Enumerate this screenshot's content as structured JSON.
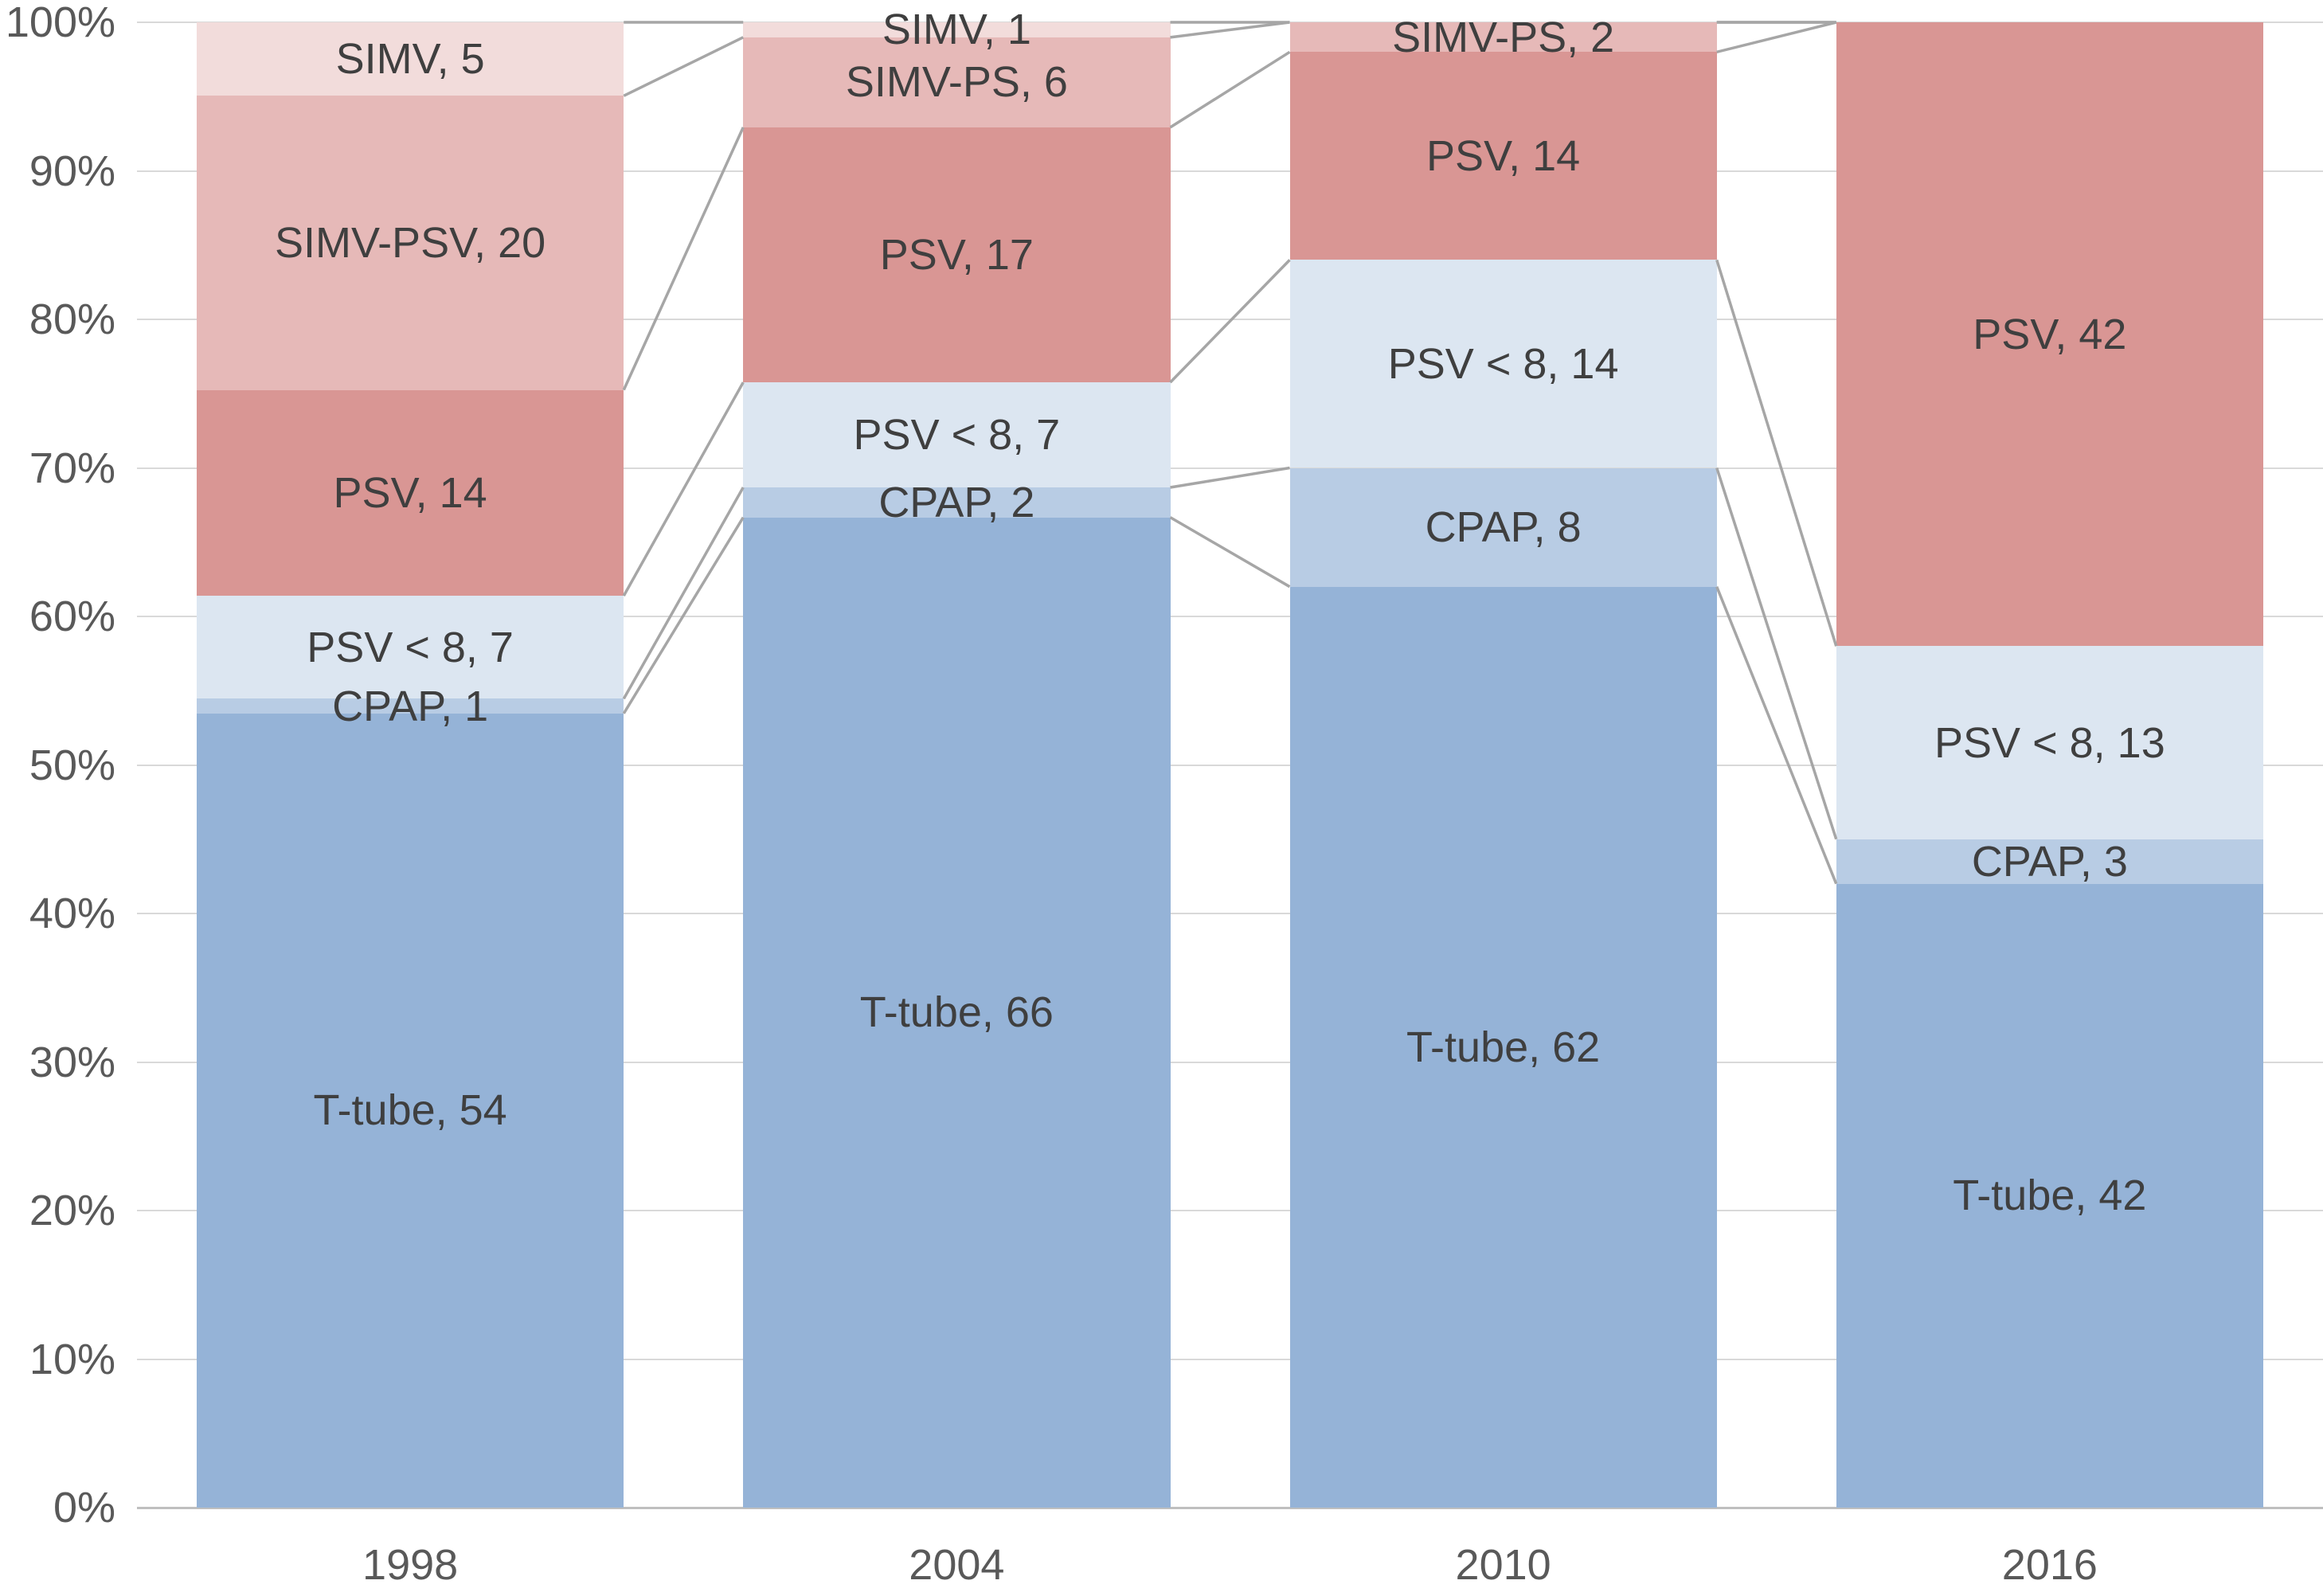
{
  "chart_data": {
    "type": "bar",
    "subtype": "percent-stacked-column",
    "title": "",
    "categories": [
      "1998",
      "2004",
      "2010",
      "2016"
    ],
    "series": [
      {
        "name": "T-tube",
        "color": "#95B3D7",
        "values": [
          54,
          66,
          62,
          42
        ],
        "labels": [
          "T-tube, 54",
          "T-tube, 66",
          "T-tube, 62",
          "T-tube, 42"
        ]
      },
      {
        "name": "CPAP",
        "color": "#B8CCE4",
        "values": [
          1,
          2,
          8,
          3
        ],
        "labels": [
          "CPAP, 1",
          "CPAP, 2",
          "CPAP, 8",
          "CPAP, 3"
        ]
      },
      {
        "name": "PSV < 8",
        "color": "#DCE6F1",
        "values": [
          7,
          7,
          14,
          13
        ],
        "labels": [
          "PSV < 8, 7",
          "PSV < 8, 7",
          "PSV < 8, 14",
          "PSV < 8, 13"
        ]
      },
      {
        "name": "PSV",
        "color": "#D99694",
        "values": [
          14,
          17,
          14,
          42
        ],
        "labels": [
          "PSV, 14",
          "PSV, 17",
          "PSV, 14",
          "PSV, 42"
        ]
      },
      {
        "name": "SIMV-PS",
        "color": "#E6B9B8",
        "values": [
          20,
          6,
          2,
          0
        ],
        "labels": [
          "SIMV-PSV, 20",
          "SIMV-PS, 6",
          "SIMV-PS, 2",
          ""
        ]
      },
      {
        "name": "SIMV",
        "color": "#F2DCDB",
        "values": [
          5,
          1,
          0,
          0
        ],
        "labels": [
          "SIMV, 5",
          "SIMV, 1",
          "",
          ""
        ]
      }
    ],
    "category_totals": [
      101,
      99,
      100,
      100
    ],
    "y_axis": {
      "min": 0,
      "max": 100,
      "ticks": [
        "0%",
        "10%",
        "20%",
        "30%",
        "40%",
        "50%",
        "60%",
        "70%",
        "80%",
        "90%",
        "100%"
      ],
      "grid": true
    },
    "x_axis": {
      "ticks": [
        "1998",
        "2004",
        "2010",
        "2016"
      ]
    },
    "series_lines": true,
    "legend": "none"
  },
  "colors": {
    "gridline": "#D9D9D9",
    "axis_line": "#BFBFBF",
    "series_line": "#A6A6A6",
    "tick_label": "#595959",
    "data_label": "#3F3F3F",
    "background": "#FFFFFF"
  }
}
